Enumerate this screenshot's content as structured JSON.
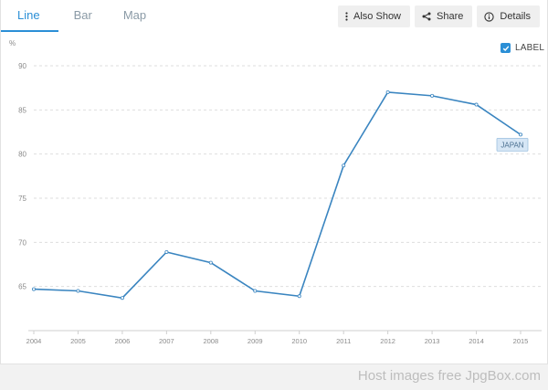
{
  "tabs": [
    {
      "label": "Line",
      "active": true
    },
    {
      "label": "Bar",
      "active": false
    },
    {
      "label": "Map",
      "active": false
    }
  ],
  "actions": {
    "also_show": "Also Show",
    "share": "Share",
    "details": "Details"
  },
  "label_toggle": {
    "text": "LABEL",
    "checked": true
  },
  "watermark": "Host images free JpgBox.com",
  "colors": {
    "accent": "#2b8fd6",
    "line": "#3a85c0",
    "label_bg": "#d6e6f5"
  },
  "chart_data": {
    "type": "line",
    "ylabel": "%",
    "x": [
      "2004",
      "2005",
      "2006",
      "2007",
      "2008",
      "2009",
      "2010",
      "2011",
      "2012",
      "2013",
      "2014",
      "2015"
    ],
    "series": [
      {
        "name": "JAPAN",
        "values": [
          64.7,
          64.5,
          63.7,
          68.9,
          67.7,
          64.5,
          63.9,
          78.7,
          87.0,
          86.6,
          85.6,
          82.2
        ]
      }
    ],
    "ylim": [
      60,
      90
    ],
    "yticks": [
      65,
      70,
      75,
      80,
      85,
      90
    ],
    "grid": true
  }
}
